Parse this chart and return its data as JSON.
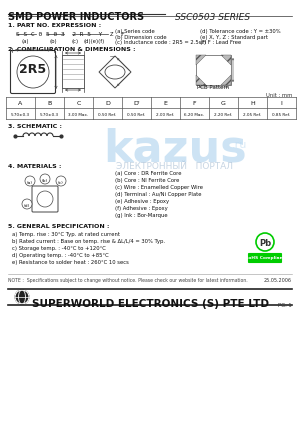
{
  "title": "SMD POWER INDUCTORS",
  "series": "SSC0503 SERIES",
  "bg_color": "#ffffff",
  "section1_title": "1. PART NO. EXPRESSION :",
  "part_expression": "S S C 0 5 0 3  2 R 5  Y  Z  F",
  "part_notes_left": [
    "(a) Series code",
    "(b) Dimension code",
    "(c) Inductance code : 2R5 = 2.5uH"
  ],
  "part_notes_right": [
    "(d) Tolerance code : Y = ±30%",
    "(e) X, Y, Z : Standard part",
    "(f) F : Lead Free"
  ],
  "section2_title": "2. CONFIGURATION & DIMENSIONS :",
  "pcb_label": "PCB Pattern",
  "unit": "Unit : mm",
  "table_headers": [
    "A",
    "B",
    "C",
    "D",
    "D'",
    "E",
    "F",
    "G",
    "H",
    "I"
  ],
  "table_values": [
    "5.70±0.3",
    "5.70±0.3",
    "3.00 Max.",
    "0.50 Ref.",
    "0.50 Ref.",
    "2.00 Ref.",
    "6.20 Max.",
    "2.20 Ref.",
    "2.05 Ref.",
    "0.85 Ref."
  ],
  "section3_title": "3. SCHEMATIC :",
  "section4_title": "4. MATERIALS :",
  "materials": [
    "(a) Core : DR Ferrite Core",
    "(b) Core : NI Ferrite Core",
    "(c) Wire : Enamelled Copper Wire",
    "(d) Terminal : Au/Ni Copper Plate",
    "(e) Adhesive : Epoxy",
    "(f) Adhesive : Epoxy",
    "(g) Ink : Bor-Marque"
  ],
  "section5_title": "5. GENERAL SPECIFICATION :",
  "general_specs": [
    "a) Temp. rise : 30°C Typ. at rated current",
    "b) Rated current : Base on temp. rise & ΔL/L/4 = 30% Typ.",
    "c) Storage temp. : -40°C to +120°C",
    "d) Operating temp. : -40°C to +85°C",
    "e) Resistance to solder heat : 260°C 10 secs"
  ],
  "note": "NOTE :  Specifications subject to change without notice. Please check our website for latest information.",
  "company": "SUPERWORLD ELECTRONICS (S) PTE LTD",
  "page": "PG. 1",
  "date": "25.05.2006",
  "rohs_color": "#00cc00",
  "kazus_color": "#b8d8f0",
  "kazus_text_color": "#a0b8d0"
}
